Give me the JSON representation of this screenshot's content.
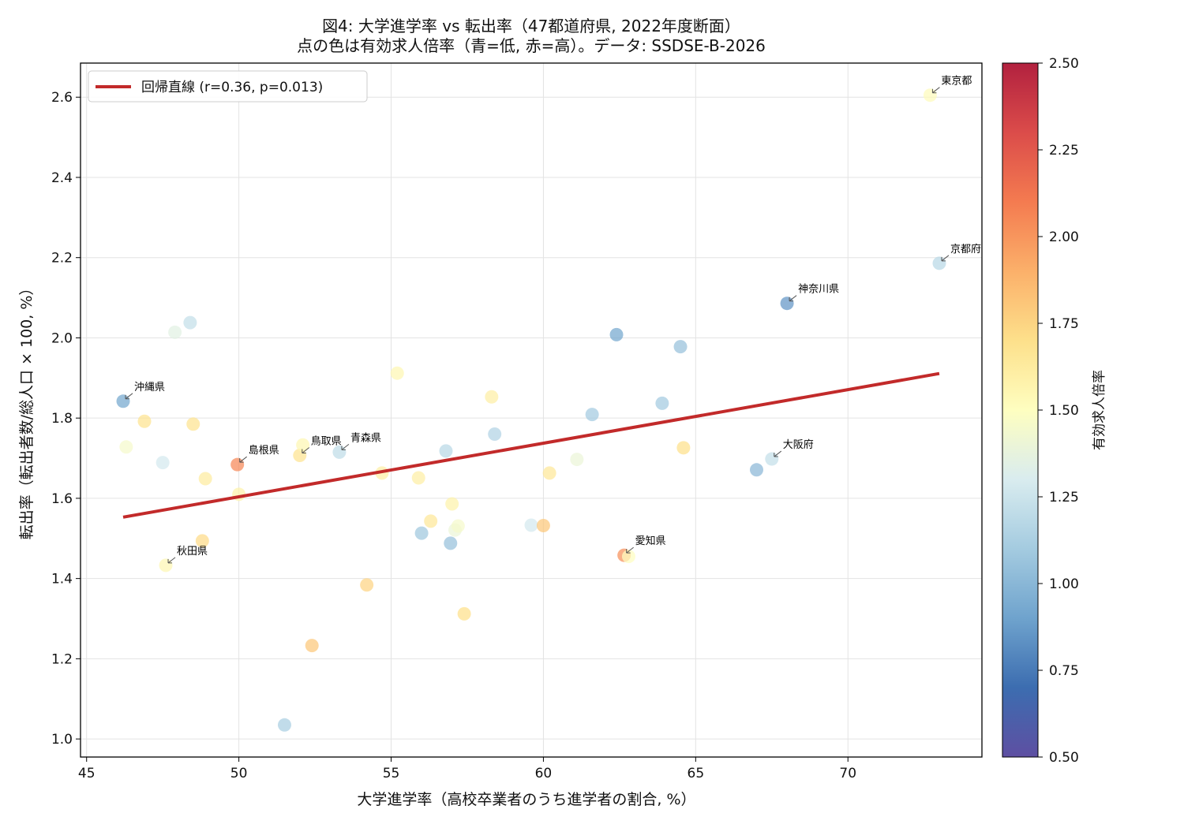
{
  "chart_data": {
    "type": "scatter",
    "title_line1": "図4: 大学進学率 vs 転出率（47都道府県, 2022年度断面）",
    "title_line2": "点の色は有効求人倍率（青=低, 赤=高）。データ: SSDSE-B-2026",
    "xlabel": "大学進学率（高校卒業者のうち進学者の割合, %）",
    "ylabel": "転出率（転出者数/総人口 × 100, %）",
    "xlim": [
      44.8,
      74.4
    ],
    "ylim": [
      0.955,
      2.685
    ],
    "xticks": [
      45,
      50,
      55,
      60,
      65,
      70
    ],
    "yticks": [
      1.0,
      1.2,
      1.4,
      1.6,
      1.8,
      2.0,
      2.2,
      2.4,
      2.6
    ],
    "grid": true,
    "legend": {
      "placement": "top-left",
      "label": "回帰直線 (r=0.36, p=0.013)"
    },
    "regression": {
      "x0": 46.2,
      "y0": 1.553,
      "x1": 73.0,
      "y1": 1.911,
      "color": "#c22a2a"
    },
    "colorbar": {
      "label": "有効求人倍率",
      "min": 0.5,
      "max": 2.5,
      "ticks": [
        "0.50",
        "0.75",
        "1.00",
        "1.25",
        "1.50",
        "1.75",
        "2.00",
        "2.25",
        "2.50"
      ],
      "colormap": "RdYlBu_r"
    },
    "points": [
      {
        "x": 46.2,
        "y": 1.842,
        "c": 0.92,
        "label": "沖縄県"
      },
      {
        "x": 46.3,
        "y": 1.728,
        "c": 1.45
      },
      {
        "x": 46.9,
        "y": 1.792,
        "c": 1.68
      },
      {
        "x": 47.5,
        "y": 1.689,
        "c": 1.28
      },
      {
        "x": 47.6,
        "y": 1.433,
        "c": 1.55,
        "label": "秋田県"
      },
      {
        "x": 47.9,
        "y": 2.014,
        "c": 1.35
      },
      {
        "x": 48.4,
        "y": 2.038,
        "c": 1.22
      },
      {
        "x": 48.5,
        "y": 1.785,
        "c": 1.68
      },
      {
        "x": 48.8,
        "y": 1.494,
        "c": 1.72
      },
      {
        "x": 48.9,
        "y": 1.649,
        "c": 1.62
      },
      {
        "x": 49.95,
        "y": 1.684,
        "c": 2.05,
        "label": "島根県"
      },
      {
        "x": 50.0,
        "y": 1.61,
        "c": 1.58
      },
      {
        "x": 51.5,
        "y": 1.035,
        "c": 1.12
      },
      {
        "x": 52.0,
        "y": 1.707,
        "c": 1.68,
        "label": "鳥取県"
      },
      {
        "x": 52.1,
        "y": 1.733,
        "c": 1.55
      },
      {
        "x": 52.4,
        "y": 1.233,
        "c": 1.8
      },
      {
        "x": 53.3,
        "y": 1.715,
        "c": 1.2,
        "label": "青森県"
      },
      {
        "x": 54.2,
        "y": 1.384,
        "c": 1.75
      },
      {
        "x": 54.7,
        "y": 1.663,
        "c": 1.6
      },
      {
        "x": 55.2,
        "y": 1.912,
        "c": 1.55
      },
      {
        "x": 55.9,
        "y": 1.651,
        "c": 1.6
      },
      {
        "x": 56.0,
        "y": 1.513,
        "c": 1.08
      },
      {
        "x": 56.3,
        "y": 1.543,
        "c": 1.65
      },
      {
        "x": 56.8,
        "y": 1.718,
        "c": 1.18
      },
      {
        "x": 56.95,
        "y": 1.488,
        "c": 1.05
      },
      {
        "x": 57.0,
        "y": 1.586,
        "c": 1.58
      },
      {
        "x": 57.1,
        "y": 1.521,
        "c": 1.4
      },
      {
        "x": 57.2,
        "y": 1.531,
        "c": 1.45
      },
      {
        "x": 57.4,
        "y": 1.312,
        "c": 1.7
      },
      {
        "x": 58.3,
        "y": 1.853,
        "c": 1.6
      },
      {
        "x": 58.4,
        "y": 1.76,
        "c": 1.15
      },
      {
        "x": 59.6,
        "y": 1.533,
        "c": 1.28
      },
      {
        "x": 60.0,
        "y": 1.532,
        "c": 1.8
      },
      {
        "x": 60.2,
        "y": 1.663,
        "c": 1.65
      },
      {
        "x": 61.1,
        "y": 1.697,
        "c": 1.4
      },
      {
        "x": 61.6,
        "y": 1.809,
        "c": 1.1
      },
      {
        "x": 62.4,
        "y": 2.008,
        "c": 0.92
      },
      {
        "x": 62.65,
        "y": 1.458,
        "c": 2.02,
        "label": "愛知県"
      },
      {
        "x": 62.8,
        "y": 1.455,
        "c": 1.5
      },
      {
        "x": 63.9,
        "y": 1.837,
        "c": 1.1
      },
      {
        "x": 64.5,
        "y": 1.978,
        "c": 1.05
      },
      {
        "x": 64.6,
        "y": 1.726,
        "c": 1.7
      },
      {
        "x": 67.0,
        "y": 1.671,
        "c": 1.0
      },
      {
        "x": 67.5,
        "y": 1.698,
        "c": 1.22,
        "label": "大阪府"
      },
      {
        "x": 68.0,
        "y": 2.086,
        "c": 0.85,
        "label": "神奈川県"
      },
      {
        "x": 72.7,
        "y": 2.605,
        "c": 1.52,
        "label": "東京都"
      },
      {
        "x": 73.0,
        "y": 2.186,
        "c": 1.18,
        "label": "京都府"
      }
    ]
  }
}
